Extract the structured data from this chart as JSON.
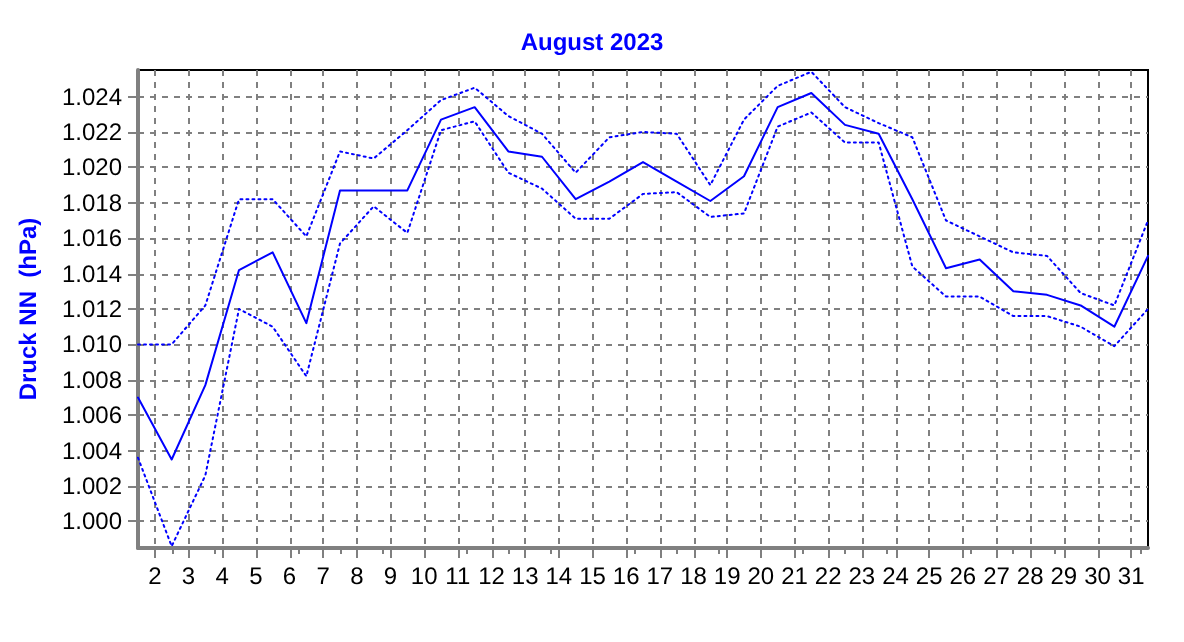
{
  "chart_data": {
    "type": "line",
    "title": "August 2023",
    "ylabel": "Druck NN  (hPa)",
    "x": [
      1.5,
      2.5,
      3.5,
      4.5,
      5.5,
      6.5,
      7.5,
      8.5,
      9.5,
      10.5,
      11.5,
      12.5,
      13.5,
      14.5,
      15.5,
      16.5,
      17.5,
      18.5,
      19.5,
      20.5,
      21.5,
      22.5,
      23.5,
      24.5,
      25.5,
      26.5,
      27.5,
      28.5,
      29.5,
      30.5,
      31.5
    ],
    "series": [
      {
        "color": "#0000ff",
        "line_style": "dotted",
        "values": [
          1010.0,
          1010.0,
          1012.2,
          1018.2,
          1018.2,
          1016.1,
          1020.9,
          1020.5,
          1022.1,
          1023.8,
          1024.5,
          1022.9,
          1021.9,
          1019.7,
          1021.7,
          1022.0,
          1021.9,
          1019.0,
          1022.7,
          1024.6,
          1025.4,
          1023.4,
          1022.5,
          1021.7,
          1017.0,
          1016.1,
          1015.2,
          1015.0,
          1012.9,
          1012.2,
          1017.0
        ]
      },
      {
        "color": "#0000ff",
        "line_style": "solid",
        "values": [
          1007.0,
          1003.5,
          1007.7,
          1014.2,
          1015.2,
          1011.2,
          1018.7,
          1018.7,
          1018.7,
          1022.7,
          1023.4,
          1020.9,
          1020.6,
          1018.2,
          1019.2,
          1020.3,
          1019.2,
          1018.1,
          1019.5,
          1023.4,
          1024.2,
          1022.4,
          1021.9,
          1018.2,
          1014.3,
          1014.8,
          1013.0,
          1012.8,
          1012.2,
          1011.0,
          1015.0
        ]
      },
      {
        "color": "#0000ff",
        "line_style": "dotted",
        "values": [
          1003.6,
          998.6,
          1002.6,
          1012.0,
          1011.0,
          1008.2,
          1015.7,
          1017.8,
          1016.3,
          1022.1,
          1022.6,
          1019.7,
          1018.8,
          1017.1,
          1017.1,
          1018.5,
          1018.6,
          1017.2,
          1017.4,
          1022.3,
          1023.1,
          1021.4,
          1021.4,
          1014.4,
          1012.7,
          1012.7,
          1011.6,
          1011.6,
          1011.0,
          1009.9,
          1012.0
        ]
      }
    ],
    "xlim": [
      1.5,
      31.5
    ],
    "xticks": [
      2,
      3,
      4,
      5,
      6,
      7,
      8,
      9,
      10,
      11,
      12,
      13,
      14,
      15,
      16,
      17,
      18,
      19,
      20,
      21,
      22,
      23,
      24,
      25,
      26,
      27,
      28,
      29,
      30,
      31
    ],
    "ylim": [
      998.5,
      1025.5
    ],
    "yticks": [
      {
        "value": 1000,
        "label": "1.000"
      },
      {
        "value": 1002,
        "label": "1.002"
      },
      {
        "value": 1004,
        "label": "1.004"
      },
      {
        "value": 1006,
        "label": "1.006"
      },
      {
        "value": 1008,
        "label": "1.008"
      },
      {
        "value": 1010,
        "label": "1.010"
      },
      {
        "value": 1012,
        "label": "1.012"
      },
      {
        "value": 1014,
        "label": "1.014"
      },
      {
        "value": 1016,
        "label": "1.016"
      },
      {
        "value": 1018,
        "label": "1.018"
      },
      {
        "value": 1020,
        "label": "1.020"
      },
      {
        "value": 1022,
        "label": "1.022"
      },
      {
        "value": 1024,
        "label": "1.024"
      }
    ],
    "grid": true,
    "marker": "none"
  }
}
